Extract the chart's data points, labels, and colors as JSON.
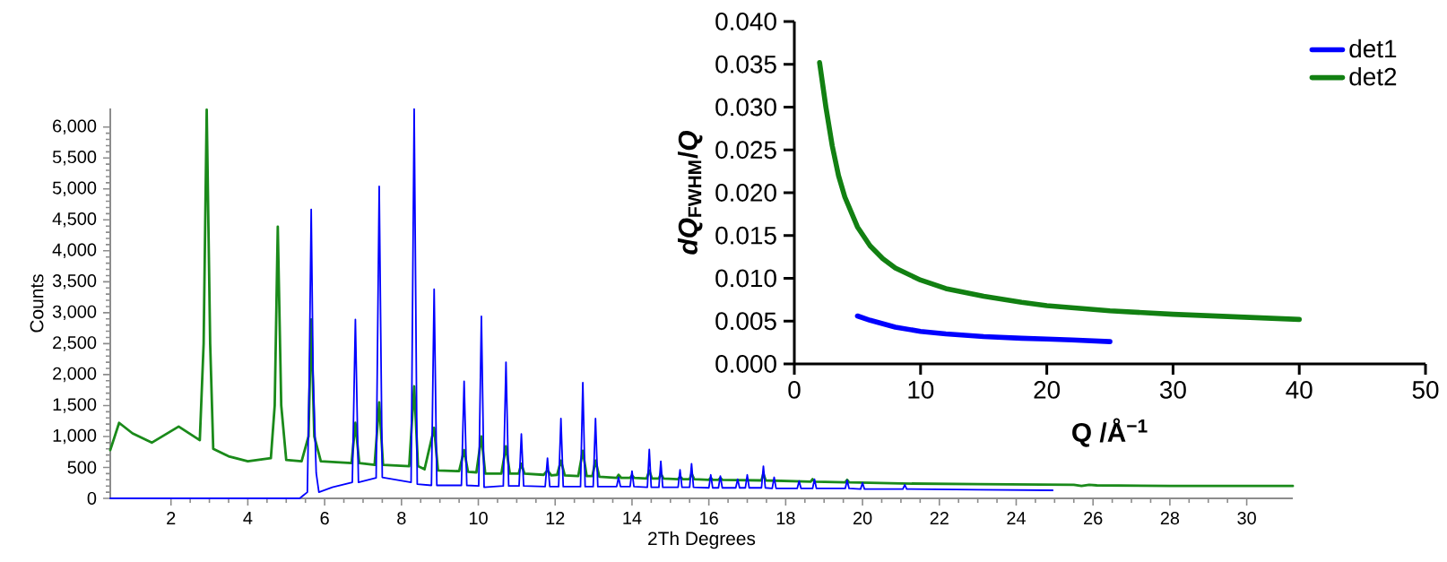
{
  "chart_data": [
    {
      "type": "line",
      "xlabel": "2Th Degrees",
      "ylabel": "Counts",
      "marker": "none",
      "xlim": [
        0.42,
        31.2
      ],
      "ylim": [
        0,
        6300
      ],
      "xticks": [
        2,
        4,
        6,
        8,
        10,
        12,
        14,
        16,
        18,
        20,
        22,
        24,
        26,
        28,
        30
      ],
      "yticks": [
        0,
        500,
        {
          "value": 1000,
          "label": "1,000"
        },
        {
          "value": 1500,
          "label": "1,500"
        },
        {
          "value": 2000,
          "label": "2,000"
        },
        {
          "value": 2500,
          "label": "2,500"
        },
        {
          "value": 3000,
          "label": "3,000"
        },
        {
          "value": 3500,
          "label": "3,500"
        },
        {
          "value": 4000,
          "label": "4,000"
        },
        {
          "value": 4500,
          "label": "4,500"
        },
        {
          "value": 5000,
          "label": "5,000"
        },
        {
          "value": 5500,
          "label": "5,500"
        },
        {
          "value": 6000,
          "label": "6,000"
        }
      ],
      "series": [
        {
          "color": "#1a8a1a",
          "x": [
            0.42,
            0.65,
            1.0,
            1.5,
            2.2,
            2.75,
            2.85,
            2.93,
            3.02,
            3.1,
            3.5,
            4.0,
            4.6,
            4.7,
            4.78,
            4.87,
            5.0,
            5.4,
            5.58,
            5.65,
            5.73,
            5.9,
            6.7,
            6.8,
            6.9,
            7.3,
            7.42,
            7.52,
            8.2,
            8.33,
            8.43,
            8.6,
            8.85,
            8.95,
            9.5,
            9.63,
            9.73,
            9.95,
            10.08,
            10.18,
            10.6,
            10.72,
            10.82,
            11.05,
            11.12,
            11.2,
            11.7,
            11.8,
            11.9,
            12.05,
            12.15,
            12.25,
            12.6,
            12.72,
            12.82,
            12.97,
            13.05,
            13.15,
            13.6,
            13.65,
            13.72,
            13.95,
            14.0,
            14.06,
            14.38,
            14.45,
            14.52,
            14.7,
            14.75,
            14.82,
            15.2,
            15.25,
            15.32,
            15.5,
            15.55,
            15.62,
            16.0,
            16.05,
            16.1,
            16.25,
            16.3,
            16.35,
            17.37,
            17.42,
            17.48,
            18.65,
            18.7,
            18.75,
            19.55,
            19.6,
            19.65,
            21,
            23,
            25.5,
            25.7,
            25.9,
            26.1,
            28,
            31.2
          ],
          "values": [
            780,
            1220,
            1050,
            900,
            1160,
            940,
            2500,
            6280,
            2500,
            800,
            680,
            600,
            650,
            1500,
            4390,
            1500,
            620,
            600,
            1000,
            2890,
            1000,
            600,
            570,
            1220,
            570,
            540,
            1550,
            540,
            520,
            1810,
            520,
            470,
            1140,
            450,
            440,
            780,
            430,
            420,
            1000,
            400,
            400,
            840,
            400,
            400,
            560,
            400,
            380,
            450,
            370,
            380,
            610,
            370,
            360,
            770,
            360,
            360,
            610,
            350,
            330,
            380,
            330,
            330,
            370,
            330,
            320,
            450,
            320,
            320,
            400,
            320,
            310,
            350,
            310,
            310,
            400,
            310,
            300,
            330,
            300,
            300,
            330,
            300,
            290,
            400,
            290,
            270,
            310,
            270,
            260,
            300,
            260,
            240,
            230,
            220,
            200,
            220,
            210,
            200,
            200
          ]
        },
        {
          "color": "#0000ff",
          "x": [
            0.42,
            5.35,
            5.45,
            5.55,
            5.6,
            5.65,
            5.7,
            5.78,
            5.85,
            6.2,
            6.72,
            6.8,
            6.88,
            7.34,
            7.42,
            7.5,
            8.25,
            8.33,
            8.41,
            8.78,
            8.85,
            8.92,
            9.56,
            9.63,
            9.7,
            10.01,
            10.08,
            10.15,
            10.65,
            10.72,
            10.79,
            11.06,
            11.12,
            11.18,
            11.74,
            11.8,
            11.86,
            12.09,
            12.15,
            12.21,
            12.66,
            12.72,
            12.78,
            12.99,
            13.05,
            13.11,
            13.6,
            13.65,
            13.7,
            13.95,
            14.0,
            14.05,
            14.4,
            14.45,
            14.5,
            14.7,
            14.75,
            14.8,
            15.2,
            15.25,
            15.3,
            15.5,
            15.55,
            15.6,
            16.0,
            16.05,
            16.1,
            16.25,
            16.3,
            16.35,
            16.7,
            16.75,
            16.8,
            16.95,
            17.0,
            17.05,
            17.37,
            17.42,
            17.47,
            17.65,
            17.7,
            17.75,
            18.3,
            18.35,
            18.4,
            18.7,
            18.75,
            18.8,
            19.55,
            19.6,
            19.65,
            19.95,
            20.0,
            20.05,
            21.05,
            21.1,
            21.15,
            23,
            24.95
          ],
          "values": [
            0,
            0,
            50,
            100,
            2000,
            4670,
            2000,
            410,
            100,
            180,
            260,
            2890,
            260,
            330,
            5040,
            340,
            260,
            6290,
            230,
            210,
            3380,
            210,
            210,
            1890,
            210,
            200,
            2940,
            180,
            200,
            2200,
            200,
            200,
            1040,
            200,
            190,
            650,
            190,
            190,
            1290,
            190,
            190,
            1870,
            190,
            190,
            1290,
            190,
            190,
            340,
            190,
            190,
            440,
            190,
            180,
            790,
            180,
            180,
            600,
            180,
            180,
            460,
            180,
            180,
            560,
            180,
            170,
            380,
            170,
            170,
            360,
            170,
            170,
            310,
            170,
            170,
            380,
            170,
            170,
            520,
            170,
            160,
            340,
            160,
            160,
            280,
            160,
            160,
            310,
            160,
            160,
            290,
            160,
            150,
            250,
            150,
            150,
            220,
            150,
            140,
            130
          ]
        }
      ]
    },
    {
      "type": "line",
      "xlabel": "Q /Å$^{−1}$",
      "ylabel": "*dQ*$_{FWHM}$/*Q*",
      "legend": "top right",
      "marker": "none",
      "xlim": [
        0,
        50
      ],
      "ylim": [
        0,
        0.04
      ],
      "xticks": [
        0,
        10,
        20,
        30,
        40,
        50
      ],
      "yticks": [
        {
          "value": 0,
          "label": "0.000"
        },
        {
          "value": 0.005,
          "label": "0.005"
        },
        {
          "value": 0.01,
          "label": "0.010"
        },
        {
          "value": 0.015,
          "label": "0.015"
        },
        {
          "value": 0.02,
          "label": "0.020"
        },
        {
          "value": 0.025,
          "label": "0.025"
        },
        {
          "value": 0.03,
          "label": "0.030"
        },
        {
          "value": 0.035,
          "label": "0.035"
        },
        {
          "value": 0.04,
          "label": "0.040"
        }
      ],
      "series": [
        {
          "name": "det1",
          "color": "#0000ff",
          "x": [
            5,
            6,
            7,
            8,
            10,
            12,
            15,
            18,
            20,
            22,
            25
          ],
          "values": [
            0.0056,
            0.0051,
            0.0047,
            0.0043,
            0.0038,
            0.0035,
            0.0032,
            0.003,
            0.0029,
            0.0028,
            0.0026
          ]
        },
        {
          "name": "det2",
          "color": "#128012",
          "x": [
            2,
            2.5,
            3,
            3.5,
            4,
            5,
            6,
            7,
            8,
            10,
            12,
            15,
            18,
            20,
            25,
            30,
            35,
            40
          ],
          "values": [
            0.0352,
            0.03,
            0.0255,
            0.022,
            0.0195,
            0.016,
            0.0138,
            0.0123,
            0.0112,
            0.0098,
            0.0088,
            0.0079,
            0.0072,
            0.0068,
            0.0062,
            0.0058,
            0.0055,
            0.0052
          ]
        }
      ]
    }
  ]
}
